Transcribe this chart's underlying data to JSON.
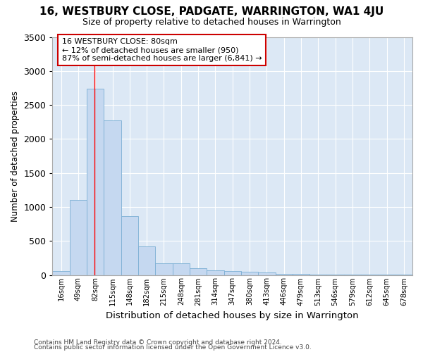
{
  "title": "16, WESTBURY CLOSE, PADGATE, WARRINGTON, WA1 4JU",
  "subtitle": "Size of property relative to detached houses in Warrington",
  "xlabel": "Distribution of detached houses by size in Warrington",
  "ylabel": "Number of detached properties",
  "bar_color": "#c5d8f0",
  "bar_edge_color": "#7bafd4",
  "background_color": "#dce8f5",
  "grid_color": "#ffffff",
  "fig_bg_color": "#ffffff",
  "categories": [
    "16sqm",
    "49sqm",
    "82sqm",
    "115sqm",
    "148sqm",
    "182sqm",
    "215sqm",
    "248sqm",
    "281sqm",
    "314sqm",
    "347sqm",
    "380sqm",
    "413sqm",
    "446sqm",
    "479sqm",
    "513sqm",
    "546sqm",
    "579sqm",
    "612sqm",
    "645sqm",
    "678sqm"
  ],
  "values": [
    55,
    1100,
    2740,
    2270,
    860,
    420,
    175,
    170,
    100,
    70,
    55,
    45,
    35,
    20,
    15,
    10,
    8,
    5,
    3,
    2,
    1
  ],
  "ylim": [
    0,
    3500
  ],
  "yticks": [
    0,
    500,
    1000,
    1500,
    2000,
    2500,
    3000,
    3500
  ],
  "property_line_x": 1.95,
  "annotation_text": "16 WESTBURY CLOSE: 80sqm\n← 12% of detached houses are smaller (950)\n87% of semi-detached houses are larger (6,841) →",
  "annotation_box_color": "#ffffff",
  "annotation_box_edge_color": "#cc0000",
  "footer1": "Contains HM Land Registry data © Crown copyright and database right 2024.",
  "footer2": "Contains public sector information licensed under the Open Government Licence v3.0."
}
